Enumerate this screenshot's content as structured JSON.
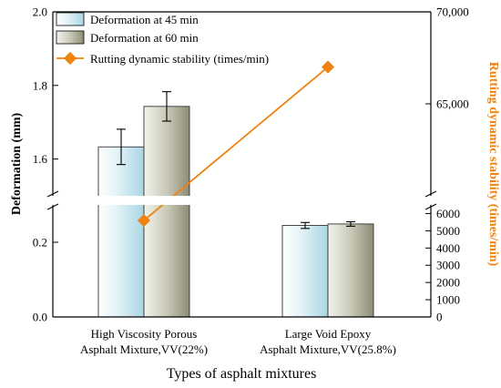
{
  "chart_data": {
    "type": "bar",
    "xlabel": "Types of asphalt mixtures",
    "ylabel_left": "Deformation (mm)",
    "ylabel_right": "Rutting dynamic stability (times/min)",
    "categories": [
      [
        "High Viscosity Porous",
        "Asphalt Mixture,VV(22%)"
      ],
      [
        "Large Void Epoxy",
        "Asphalt Mixture,VV(25.8%)"
      ]
    ],
    "left_axis": {
      "segments": [
        {
          "range": [
            0,
            0.3
          ],
          "ticks": [
            0.0,
            0.2
          ],
          "tick_labels": [
            "0.0",
            "0.2"
          ]
        },
        {
          "range": [
            1.5,
            2.0
          ],
          "ticks": [
            1.6,
            1.8,
            2.0
          ],
          "tick_labels": [
            "1.6",
            "1.8",
            "2.0"
          ]
        }
      ]
    },
    "right_axis": {
      "color": "#f0820f",
      "segments": [
        {
          "range": [
            0,
            6500
          ],
          "ticks": [
            0,
            1000,
            2000,
            3000,
            4000,
            5000,
            6000
          ],
          "tick_labels": [
            "0",
            "1000",
            "2000",
            "3000",
            "4000",
            "5000",
            "6000"
          ]
        },
        {
          "range": [
            60000,
            70000
          ],
          "ticks": [
            65000,
            70000
          ],
          "tick_labels": [
            "65,000",
            "70,000"
          ]
        }
      ]
    },
    "series": [
      {
        "name": "Deformation at 45 min",
        "kind": "bar",
        "values": [
          1.633,
          0.245
        ],
        "errors": [
          0.048,
          0.008
        ],
        "fill": "#dff1f6"
      },
      {
        "name": "Deformation at 60 min",
        "kind": "bar",
        "values": [
          1.743,
          0.249
        ],
        "errors": [
          0.04,
          0.006
        ],
        "fill": "#c9c9b7"
      },
      {
        "name": "Rutting dynamic stability (times/min)",
        "kind": "line",
        "axis": "right",
        "values": [
          5600,
          67000
        ],
        "color": "#f0820f"
      }
    ],
    "legend_position": "top-left"
  }
}
